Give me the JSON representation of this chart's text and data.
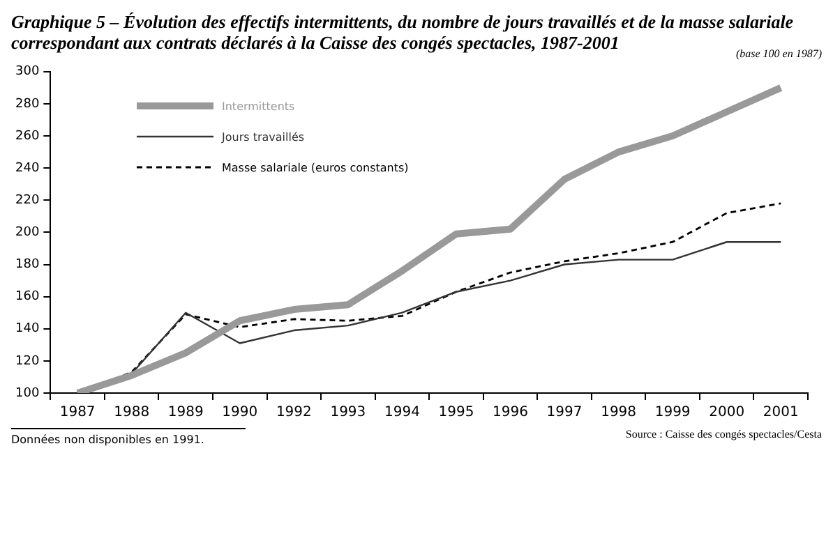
{
  "chart_data": {
    "type": "line",
    "title": "Graphique 5 – Évolution des effectifs intermittents, du nombre de jours travaillés et de la masse salariale correspondant aux contrats déclarés à la Caisse des congés spectacles, 1987-2001",
    "subtitle": "(base 100 en 1987)",
    "categories": [
      "1987",
      "1988",
      "1989",
      "1990",
      "1992",
      "1993",
      "1994",
      "1995",
      "1996",
      "1997",
      "1998",
      "1999",
      "2000",
      "2001"
    ],
    "series": [
      {
        "name": "Intermittents",
        "color": "#999999",
        "line_style": "solid",
        "values": [
          100,
          111,
          125,
          145,
          152,
          155,
          176,
          199,
          202,
          233,
          250,
          260,
          275,
          290
        ]
      },
      {
        "name": "Jours travaillés",
        "color": "#333333",
        "line_style": "solid",
        "values": [
          100,
          112,
          150,
          131,
          139,
          142,
          150,
          163,
          170,
          180,
          183,
          183,
          194,
          194
        ]
      },
      {
        "name": "Masse salariale (euros constants)",
        "color": "#000000",
        "line_style": "dashed",
        "values": [
          100,
          113,
          149,
          141,
          146,
          145,
          148,
          163,
          175,
          182,
          187,
          194,
          212,
          218
        ]
      }
    ],
    "ylim": [
      100,
      300
    ],
    "yticks": [
      100,
      120,
      140,
      160,
      180,
      200,
      220,
      240,
      260,
      280,
      300
    ],
    "grid": false,
    "legend": "top left",
    "marker": "none",
    "annotations": [
      "Données non disponibles en 1991.",
      "Source : Caisse des congés spectacles/Cesta"
    ]
  }
}
